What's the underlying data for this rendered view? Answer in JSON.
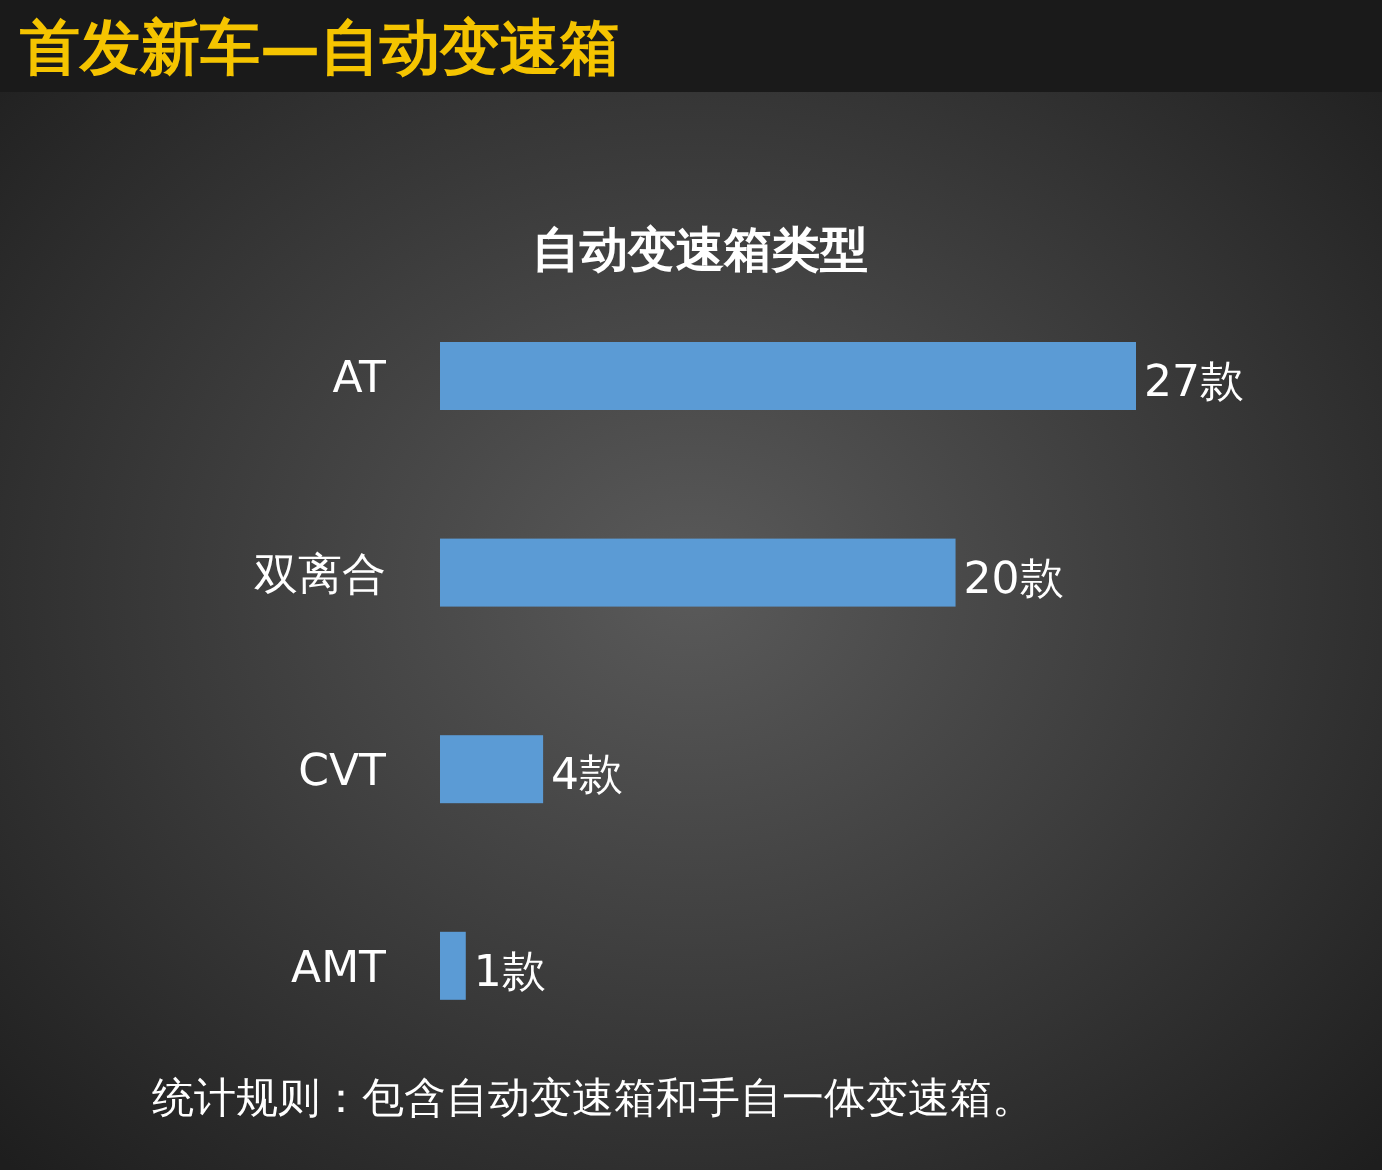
{
  "chart_data": {
    "type": "bar",
    "orientation": "horizontal",
    "title": "首发新车—自动变速箱",
    "subtitle": "自动变速箱类型",
    "categories": [
      "AT",
      "双离合",
      "CVT",
      "AMT"
    ],
    "values": [
      27,
      20,
      4,
      1
    ],
    "value_labels": [
      "27款",
      "20款",
      "4款",
      "1款"
    ],
    "color": "#5b9bd5",
    "annotations": [
      "统计规则：包含自动变速箱和手自一体变速箱。"
    ]
  }
}
